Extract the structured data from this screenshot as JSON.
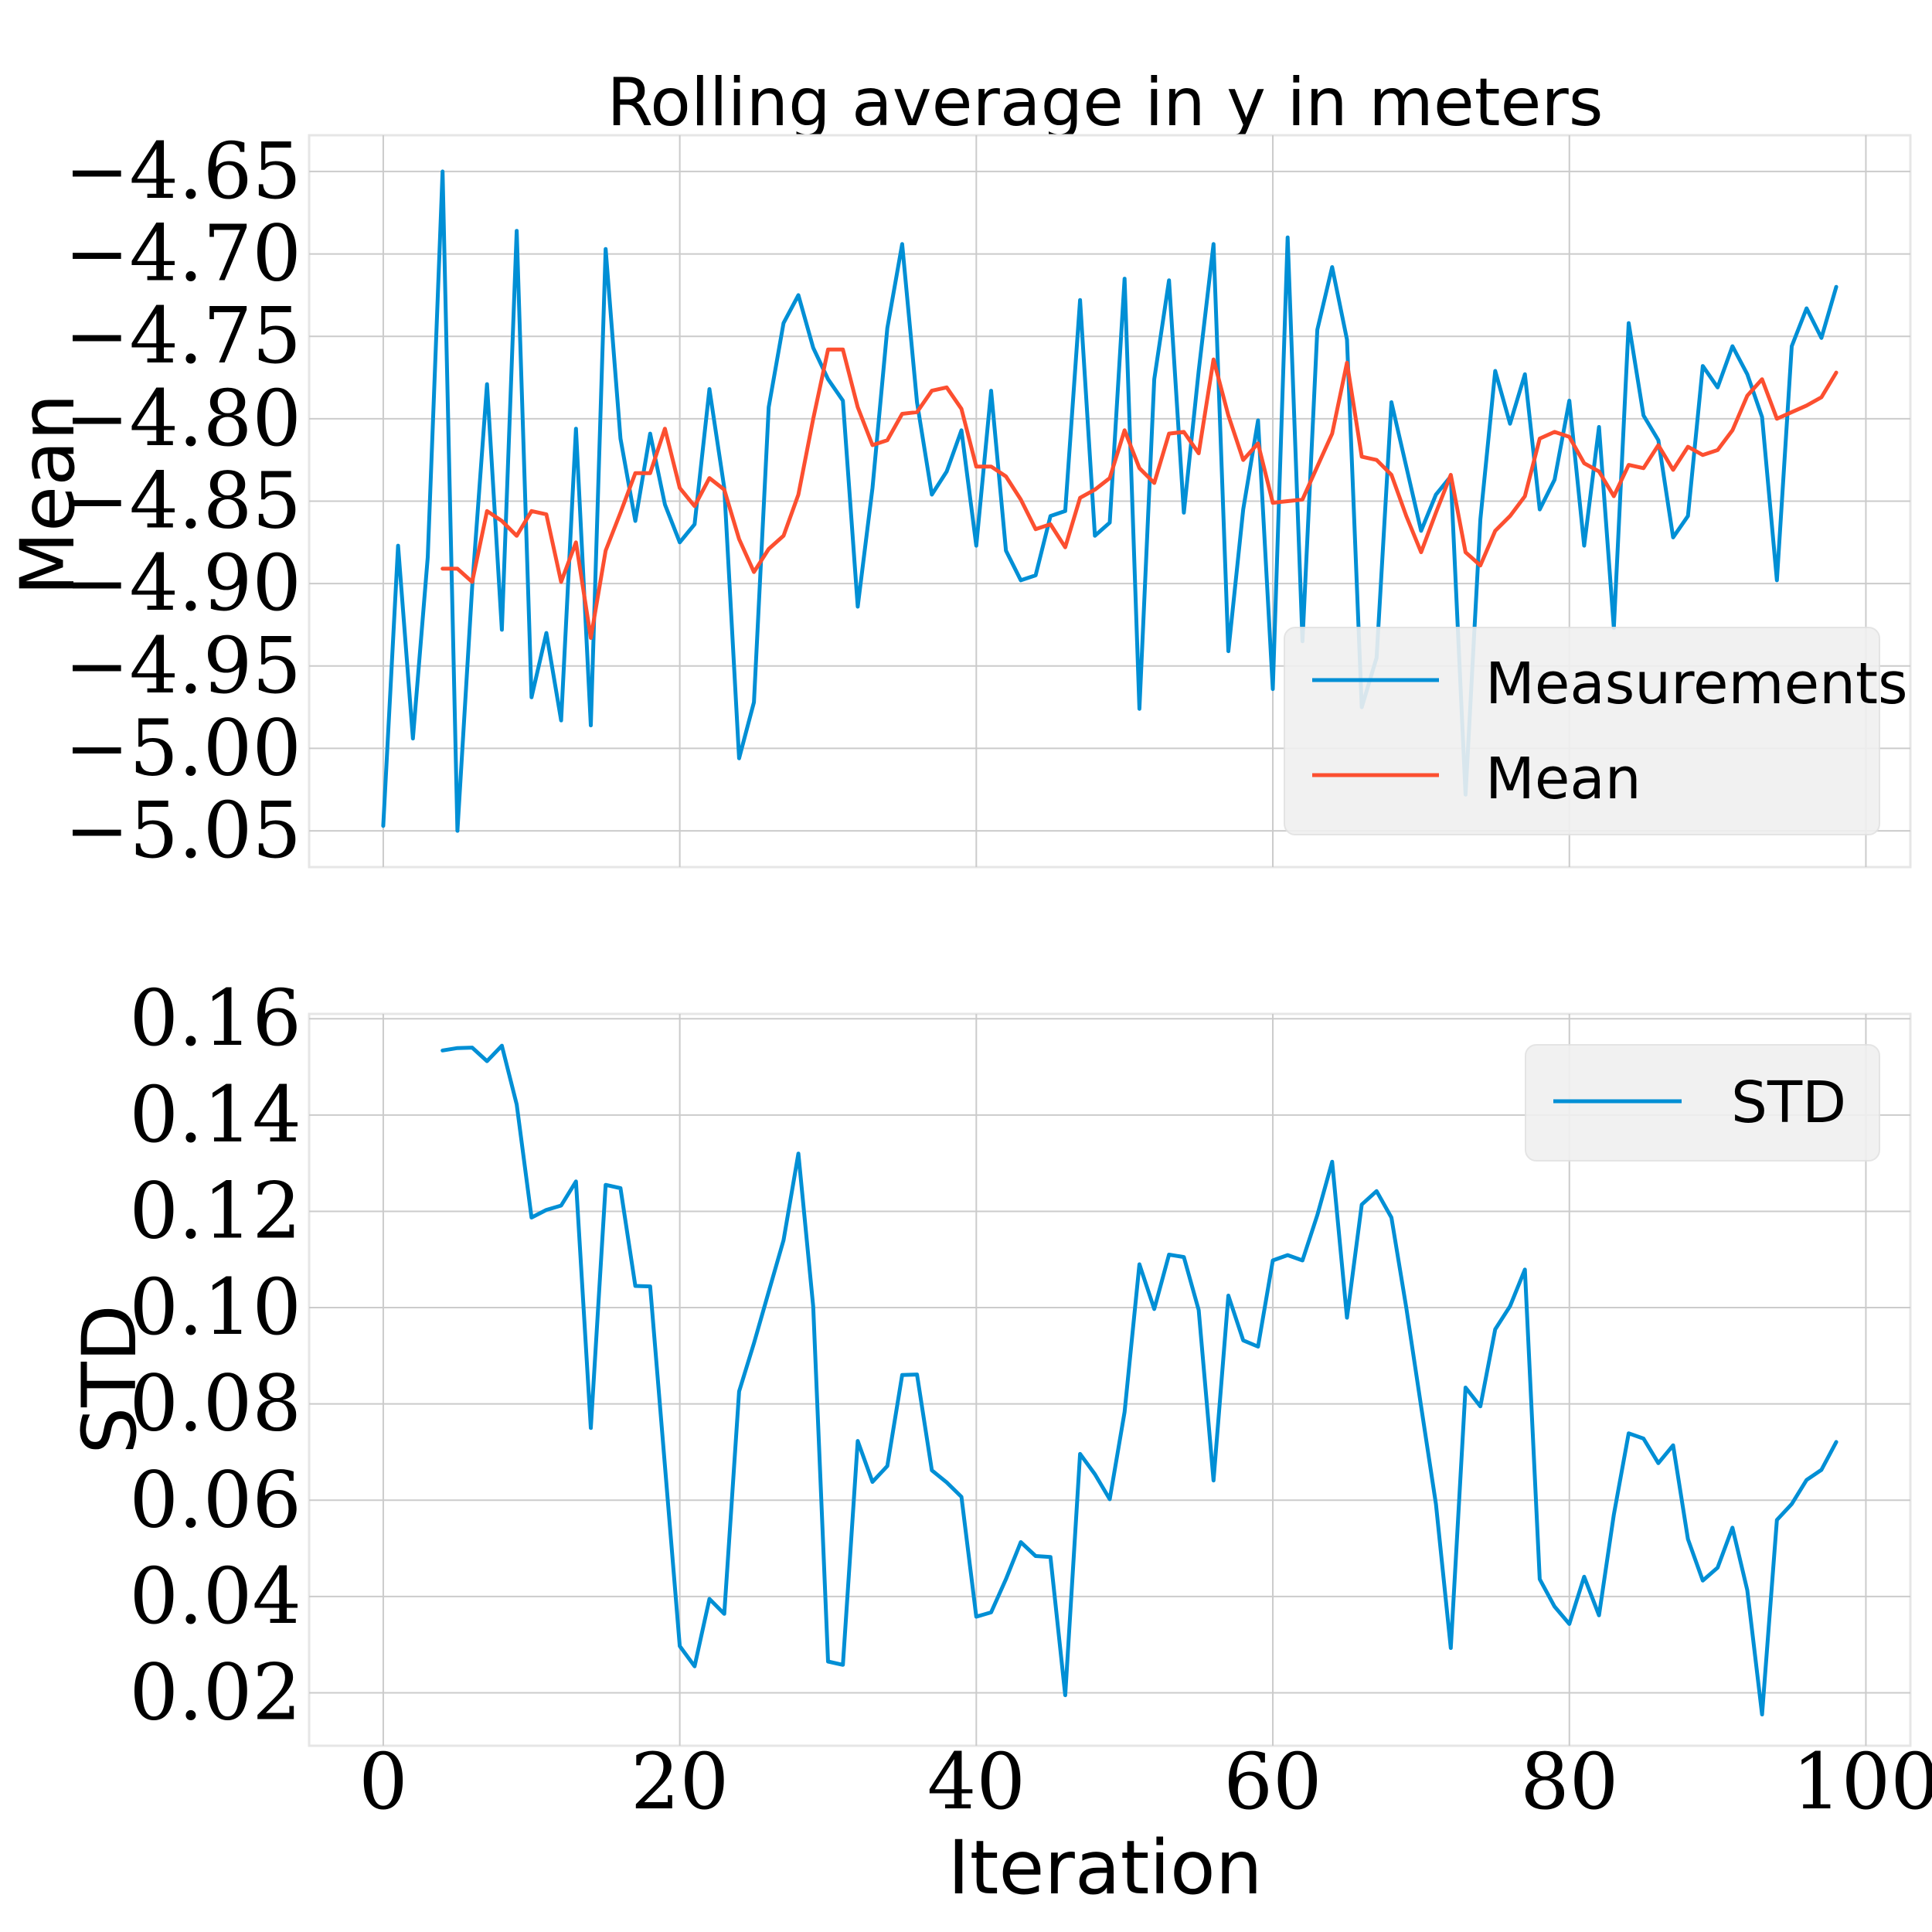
{
  "figure": {
    "title": "Rolling average in y in meters",
    "xlabel": "Iteration",
    "x_tick_labels": [
      "0",
      "20",
      "40",
      "60",
      "80",
      "100"
    ]
  },
  "colors": {
    "blue": "#008FD5",
    "red": "#FC4F30",
    "grid": "#CBCBCB",
    "legend_bg": "#F0F0F0"
  },
  "chart_data": [
    {
      "type": "line",
      "ylabel": "Mean",
      "xlim": [
        -5,
        103
      ],
      "ylim": [
        -5.072,
        -4.628
      ],
      "grid": true,
      "legend_position": "lower-right",
      "x_ticks": [
        0,
        20,
        40,
        60,
        80,
        100
      ],
      "y_ticks": [
        -5.05,
        -5.0,
        -4.95,
        -4.9,
        -4.85,
        -4.8,
        -4.75,
        -4.7,
        -4.65
      ],
      "y_tick_labels": [
        "−5.05",
        "−5.00",
        "−4.95",
        "−4.90",
        "−4.85",
        "−4.80",
        "−4.75",
        "−4.70",
        "−4.65"
      ],
      "series": [
        {
          "name": "Measurements",
          "color": "#008FD5",
          "x_start": 0,
          "values": [
            -5.047,
            -4.877,
            -4.994,
            -4.884,
            -4.65,
            -5.05,
            -4.902,
            -4.779,
            -4.928,
            -4.686,
            -4.969,
            -4.93,
            -4.983,
            -4.806,
            -4.986,
            -4.697,
            -4.812,
            -4.862,
            -4.809,
            -4.852,
            -4.875,
            -4.864,
            -4.782,
            -4.842,
            -5.006,
            -4.972,
            -4.793,
            -4.742,
            -4.725,
            -4.757,
            -4.776,
            -4.789,
            -4.914,
            -4.842,
            -4.745,
            -4.694,
            -4.79,
            -4.846,
            -4.832,
            -4.807,
            -4.877,
            -4.783,
            -4.88,
            -4.898,
            -4.895,
            -4.859,
            -4.856,
            -4.728,
            -4.871,
            -4.863,
            -4.715,
            -4.976,
            -4.776,
            -4.716,
            -4.857,
            -4.771,
            -4.694,
            -4.941,
            -4.855,
            -4.801,
            -4.964,
            -4.69,
            -4.935,
            -4.746,
            -4.708,
            -4.752,
            -4.975,
            -4.945,
            -4.79,
            -4.829,
            -4.868,
            -4.846,
            -4.835,
            -5.028,
            -4.861,
            -4.771,
            -4.803,
            -4.773,
            -4.855,
            -4.837,
            -4.789,
            -4.877,
            -4.805,
            -4.927,
            -4.742,
            -4.798,
            -4.813,
            -4.872,
            -4.859,
            -4.768,
            -4.781,
            -4.756,
            -4.773,
            -4.799,
            -4.898,
            -4.756,
            -4.733,
            -4.751,
            -4.72
          ]
        },
        {
          "name": "Mean",
          "color": "#FC4F30",
          "x_start": 4,
          "values": [
            -4.891,
            -4.891,
            -4.899,
            -4.856,
            -4.862,
            -4.871,
            -4.856,
            -4.858,
            -4.899,
            -4.875,
            -4.933,
            -4.88,
            -4.857,
            -4.833,
            -4.833,
            -4.806,
            -4.842,
            -4.853,
            -4.836,
            -4.843,
            -4.873,
            -4.893,
            -4.879,
            -4.871,
            -4.846,
            -4.8,
            -4.758,
            -4.758,
            -4.793,
            -4.816,
            -4.813,
            -4.797,
            -4.796,
            -4.783,
            -4.781,
            -4.794,
            -4.829,
            -4.829,
            -4.835,
            -4.849,
            -4.867,
            -4.864,
            -4.878,
            -4.848,
            -4.843,
            -4.836,
            -4.807,
            -4.83,
            -4.839,
            -4.809,
            -4.808,
            -4.821,
            -4.764,
            -4.798,
            -4.825,
            -4.815,
            -4.851,
            -4.85,
            -4.849,
            -4.829,
            -4.809,
            -4.766,
            -4.823,
            -4.825,
            -4.834,
            -4.859,
            -4.881,
            -4.857,
            -4.834,
            -4.881,
            -4.889,
            -4.868,
            -4.859,
            -4.847,
            -4.812,
            -4.808,
            -4.811,
            -4.827,
            -4.832,
            -4.847,
            -4.828,
            -4.83,
            -4.816,
            -4.831,
            -4.817,
            -4.822,
            -4.819,
            -4.807,
            -4.786,
            -4.776,
            -4.8,
            -4.796,
            -4.792,
            -4.787,
            -4.772
          ]
        }
      ]
    },
    {
      "type": "line",
      "ylabel": "STD",
      "xlim": [
        -5,
        103
      ],
      "ylim": [
        0.009,
        0.161
      ],
      "grid": true,
      "legend_position": "top-right",
      "x_ticks": [
        0,
        20,
        40,
        60,
        80,
        100
      ],
      "y_ticks": [
        0.02,
        0.04,
        0.06,
        0.08,
        0.1,
        0.12,
        0.14,
        0.16
      ],
      "y_tick_labels": [
        "0.02",
        "0.04",
        "0.06",
        "0.08",
        "0.10",
        "0.12",
        "0.14",
        "0.16"
      ],
      "series": [
        {
          "name": "STD",
          "color": "#008FD5",
          "x_start": 4,
          "values": [
            0.1534,
            0.1539,
            0.154,
            0.1512,
            0.1544,
            0.1422,
            0.1187,
            0.1203,
            0.1212,
            0.1262,
            0.075,
            0.1255,
            0.1248,
            0.1045,
            0.1044,
            0.0672,
            0.0297,
            0.0255,
            0.0395,
            0.0364,
            0.0826,
            0.0926,
            0.1033,
            0.114,
            0.132,
            0.1002,
            0.0265,
            0.0258,
            0.0723,
            0.0638,
            0.0671,
            0.086,
            0.0861,
            0.0662,
            0.0637,
            0.0607,
            0.0358,
            0.0367,
            0.0436,
            0.0513,
            0.0484,
            0.0482,
            0.0195,
            0.0696,
            0.0654,
            0.0602,
            0.0783,
            0.109,
            0.0997,
            0.111,
            0.1105,
            0.0995,
            0.0641,
            0.1025,
            0.0932,
            0.0919,
            0.1098,
            0.1109,
            0.1098,
            0.1192,
            0.1303,
            0.0979,
            0.1214,
            0.1242,
            0.1187,
            0.1,
            0.0795,
            0.0592,
            0.0293,
            0.0834,
            0.0795,
            0.0955,
            0.1003,
            0.1079,
            0.0436,
            0.0379,
            0.0343,
            0.0441,
            0.0361,
            0.057,
            0.0739,
            0.0728,
            0.0677,
            0.0714,
            0.0519,
            0.0433,
            0.046,
            0.0543,
            0.0413,
            0.0155,
            0.0559,
            0.0592,
            0.0642,
            0.0663,
            0.0721
          ]
        }
      ]
    }
  ]
}
